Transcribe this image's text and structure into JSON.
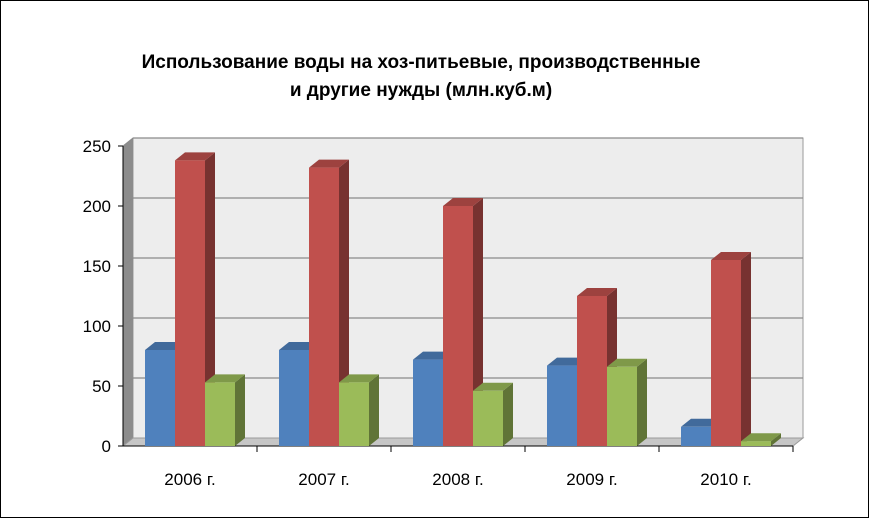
{
  "chart_data": {
    "type": "bar",
    "title": "Использование воды на хоз-питьевые, производственные\nи другие нужды (млн.куб.м)",
    "categories": [
      "2006 г.",
      "2007 г.",
      "2008 г.",
      "2009 г.",
      "2010 г."
    ],
    "series": [
      {
        "values": [
          80,
          80,
          72,
          67,
          16
        ],
        "color": "#4F81BD"
      },
      {
        "values": [
          238,
          232,
          200,
          125,
          155
        ],
        "color": "#C0504D"
      },
      {
        "values": [
          53,
          53,
          46,
          66,
          4
        ],
        "color": "#9BBB59"
      }
    ],
    "ylim": [
      0,
      250
    ],
    "yticks": [
      "0",
      "50",
      "100",
      "150",
      "200",
      "250"
    ],
    "grid": true,
    "legend": "none"
  }
}
